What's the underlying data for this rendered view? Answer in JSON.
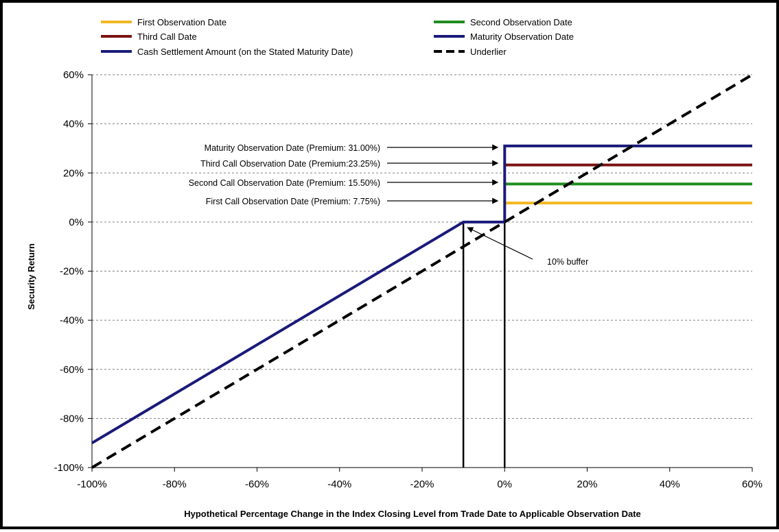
{
  "chart_data": {
    "type": "line",
    "xlabel": "Hypothetical Percentage Change in the Index Closing Level from Trade Date to Applicable Observation Date",
    "ylabel": "Security Return",
    "xlim": [
      -100,
      60
    ],
    "ylim": [
      -100,
      60
    ],
    "x_ticks": [
      -100,
      -80,
      -60,
      -40,
      -20,
      0,
      20,
      40,
      60
    ],
    "y_ticks": [
      -100,
      -80,
      -60,
      -40,
      -20,
      0,
      20,
      40,
      60
    ],
    "x_tick_labels": [
      "-100%",
      "-80%",
      "-60%",
      "-40%",
      "-20%",
      "0%",
      "20%",
      "40%",
      "60%"
    ],
    "y_tick_labels": [
      "-100%",
      "-80%",
      "-60%",
      "-40%",
      "-20%",
      "0%",
      "20%",
      "40%",
      "60%"
    ],
    "grid": "horizontal dashed",
    "legend_position": "top",
    "series": [
      {
        "name": "First Observation Date",
        "color": "#f2b823",
        "x": [
          0,
          60
        ],
        "y": [
          7.75,
          7.75
        ]
      },
      {
        "name": "Second Observation Date",
        "color": "#1e8c1e",
        "x": [
          0,
          60
        ],
        "y": [
          15.5,
          15.5
        ]
      },
      {
        "name": "Third Call Date",
        "color": "#7a1212",
        "x": [
          0,
          60
        ],
        "y": [
          23.25,
          23.25
        ]
      },
      {
        "name": "Maturity Observation Date",
        "color": "#1a1a7a",
        "x": [
          0,
          0,
          60
        ],
        "y": [
          0,
          31,
          31
        ]
      },
      {
        "name": "Cash Settlement Amount (on the Stated Maturity Date)",
        "color": "#1a1a7a",
        "x": [
          -100,
          -10,
          0
        ],
        "y": [
          -90,
          0,
          0
        ]
      },
      {
        "name": "Underlier",
        "color": "#000000",
        "dash": "dashed",
        "x": [
          -100,
          60
        ],
        "y": [
          -100,
          60
        ]
      }
    ],
    "vertical_lines": [
      {
        "x": 0,
        "y_from": -100,
        "y_to": 31,
        "color": "#000000"
      },
      {
        "x": -10,
        "y_from": -100,
        "y_to": 0,
        "color": "#000000"
      }
    ],
    "annotations": [
      {
        "text": "Maturity Observation Date (Premium: 31.00%)",
        "target_y": 31
      },
      {
        "text": "Third Call Observation Date (Premium:23.25%)",
        "target_y": 23.25
      },
      {
        "text": "Second Call Observation Date (Premium: 15.50%)",
        "target_y": 15.5
      },
      {
        "text": "First Call Observation Date (Premium: 7.75%)",
        "target_y": 7.75
      },
      {
        "text": "10% buffer",
        "target_x": -10,
        "target_y": 0
      }
    ]
  }
}
